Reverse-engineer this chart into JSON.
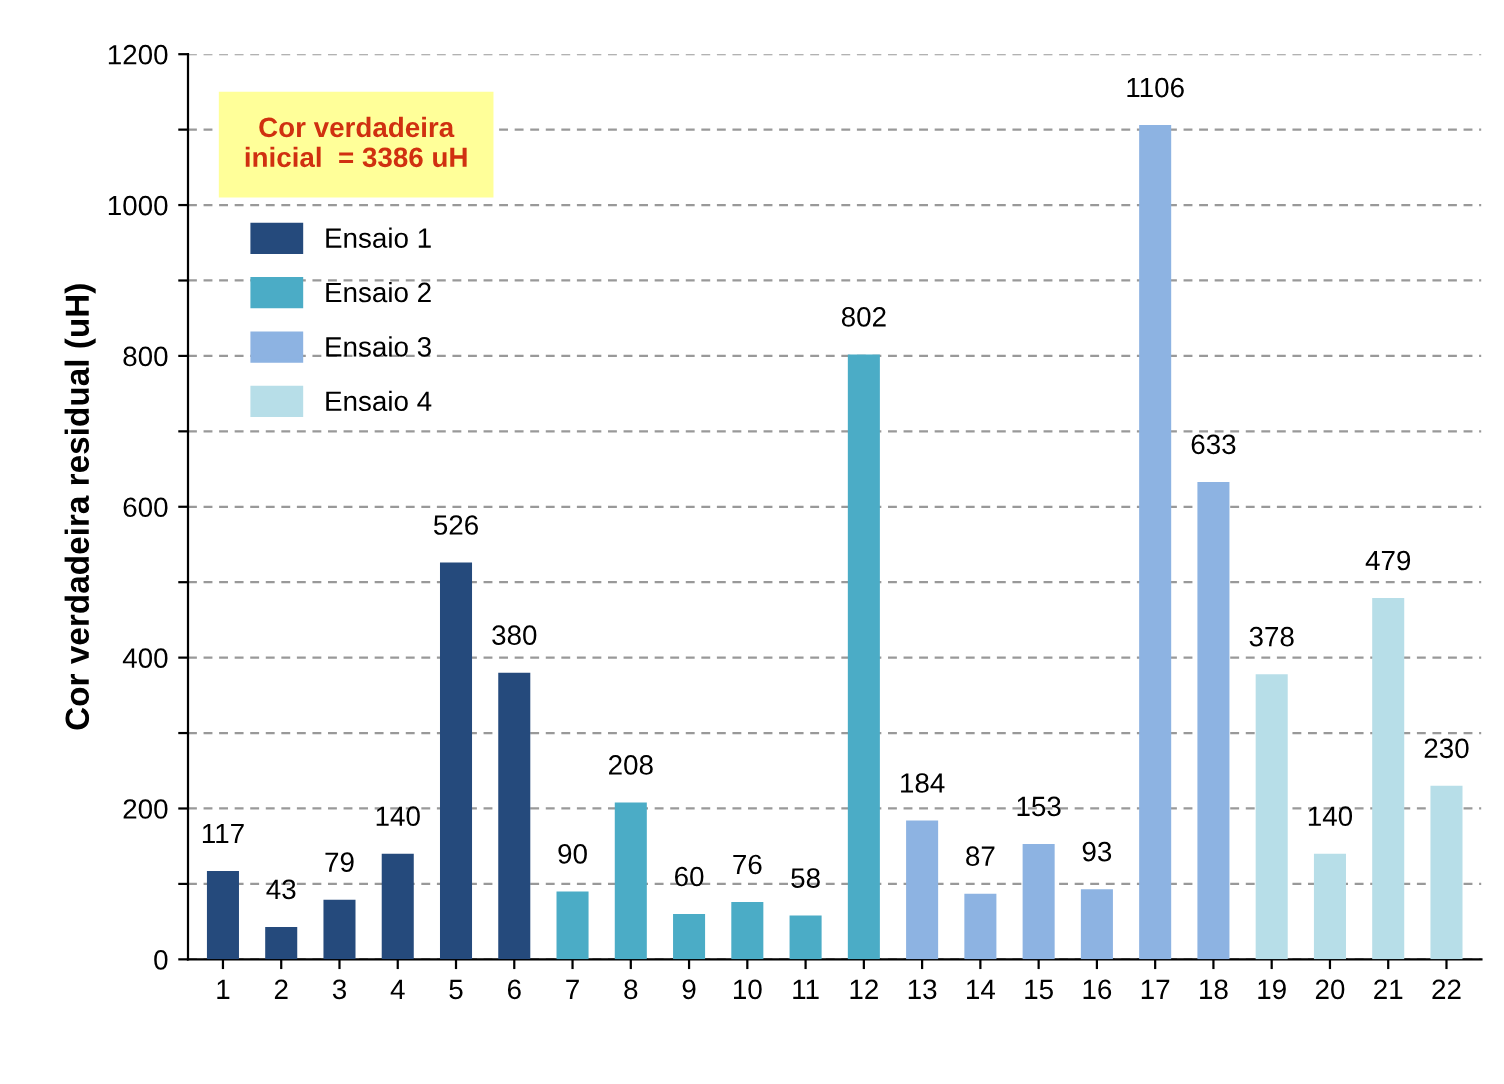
{
  "chart_data": {
    "type": "bar",
    "ylabel": "Cor verdadeira residual (uH)",
    "categories": [
      "1",
      "2",
      "3",
      "4",
      "5",
      "6",
      "7",
      "8",
      "9",
      "10",
      "11",
      "12",
      "13",
      "14",
      "15",
      "16",
      "17",
      "18",
      "19",
      "20",
      "21",
      "22"
    ],
    "series": [
      {
        "name": "Ensaio 1",
        "color": "#254a7c",
        "values": [
          117,
          43,
          79,
          140,
          526,
          380,
          null,
          null,
          null,
          null,
          null,
          null,
          null,
          null,
          null,
          null,
          null,
          null,
          null,
          null,
          null,
          null
        ]
      },
      {
        "name": "Ensaio 2",
        "color": "#4bacc6",
        "values": [
          null,
          null,
          null,
          null,
          null,
          null,
          90,
          208,
          60,
          76,
          58,
          802,
          null,
          null,
          null,
          null,
          null,
          null,
          null,
          null,
          null,
          null
        ]
      },
      {
        "name": "Ensaio 3",
        "color": "#8db3e2",
        "values": [
          null,
          null,
          null,
          null,
          null,
          null,
          null,
          null,
          null,
          null,
          null,
          null,
          184,
          87,
          153,
          93,
          1106,
          633,
          null,
          null,
          null,
          null
        ]
      },
      {
        "name": "Ensaio 4",
        "color": "#b7dee8",
        "values": [
          null,
          null,
          null,
          null,
          null,
          null,
          null,
          null,
          null,
          null,
          null,
          null,
          null,
          null,
          null,
          null,
          null,
          null,
          378,
          140,
          479,
          230
        ]
      }
    ],
    "ylim": [
      0,
      1200
    ],
    "yticks": [
      0,
      {
        "value": 100,
        "label": null
      },
      200,
      {
        "value": 300,
        "label": null
      },
      400,
      {
        "value": 500,
        "label": null
      },
      600,
      {
        "value": 700,
        "label": null
      },
      800,
      {
        "value": 900,
        "label": null
      },
      1000,
      {
        "value": 1100,
        "label": null
      },
      1200
    ],
    "grid": "y",
    "legend": "top left",
    "data_labels": true,
    "annotations": [
      "Cor verdadeira\ninicial  = 3386 uH"
    ]
  }
}
